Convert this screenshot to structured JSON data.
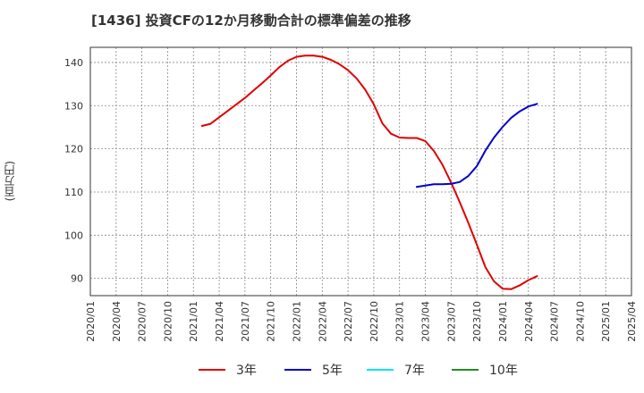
{
  "chart_data": {
    "type": "line",
    "title": "[1436]  投資CFの12か月移動合計の標準偏差の推移",
    "ylabel": "(百万円)",
    "xlabel": "",
    "ylim": [
      86,
      143.5
    ],
    "yticks": [
      90,
      100,
      110,
      120,
      130,
      140
    ],
    "x_ticks": [
      "2020/01",
      "2020/04",
      "2020/07",
      "2020/10",
      "2021/01",
      "2021/04",
      "2021/07",
      "2021/10",
      "2022/01",
      "2022/04",
      "2022/07",
      "2022/10",
      "2023/01",
      "2023/04",
      "2023/07",
      "2023/10",
      "2024/01",
      "2024/04",
      "2024/07",
      "2024/10",
      "2025/01",
      "2025/04"
    ],
    "grid": true,
    "legend_position": "bottom",
    "series": [
      {
        "name": "3年",
        "color": "#e00000",
        "points": [
          [
            "2021/02",
            125.3
          ],
          [
            "2021/03",
            125.8
          ],
          [
            "2021/04",
            127.3
          ],
          [
            "2021/05",
            128.8
          ],
          [
            "2021/06",
            130.3
          ],
          [
            "2021/07",
            131.8
          ],
          [
            "2021/08",
            133.5
          ],
          [
            "2021/09",
            135.2
          ],
          [
            "2021/10",
            137.0
          ],
          [
            "2021/11",
            138.9
          ],
          [
            "2021/12",
            140.4
          ],
          [
            "2022/01",
            141.3
          ],
          [
            "2022/02",
            141.6
          ],
          [
            "2022/03",
            141.6
          ],
          [
            "2022/04",
            141.3
          ],
          [
            "2022/05",
            140.6
          ],
          [
            "2022/06",
            139.6
          ],
          [
            "2022/07",
            138.2
          ],
          [
            "2022/08",
            136.3
          ],
          [
            "2022/09",
            133.7
          ],
          [
            "2022/10",
            130.3
          ],
          [
            "2022/11",
            125.9
          ],
          [
            "2022/12",
            123.5
          ],
          [
            "2023/01",
            122.6
          ],
          [
            "2023/02",
            122.5
          ],
          [
            "2023/03",
            122.5
          ],
          [
            "2023/04",
            121.8
          ],
          [
            "2023/05",
            119.5
          ],
          [
            "2023/06",
            116.3
          ],
          [
            "2023/07",
            112.2
          ],
          [
            "2023/08",
            107.7
          ],
          [
            "2023/09",
            102.9
          ],
          [
            "2023/10",
            97.8
          ],
          [
            "2023/11",
            92.6
          ],
          [
            "2023/12",
            89.3
          ],
          [
            "2024/01",
            87.6
          ],
          [
            "2024/02",
            87.5
          ],
          [
            "2024/03",
            88.4
          ],
          [
            "2024/04",
            89.6
          ],
          [
            "2024/05",
            90.5
          ]
        ]
      },
      {
        "name": "5年",
        "color": "#0000cc",
        "points": [
          [
            "2023/03",
            111.2
          ],
          [
            "2023/04",
            111.5
          ],
          [
            "2023/05",
            111.8
          ],
          [
            "2023/06",
            111.8
          ],
          [
            "2023/07",
            111.9
          ],
          [
            "2023/08",
            112.3
          ],
          [
            "2023/09",
            113.7
          ],
          [
            "2023/10",
            116.0
          ],
          [
            "2023/11",
            119.6
          ],
          [
            "2023/12",
            122.6
          ],
          [
            "2024/01",
            125.1
          ],
          [
            "2024/02",
            127.2
          ],
          [
            "2024/03",
            128.7
          ],
          [
            "2024/04",
            129.8
          ],
          [
            "2024/05",
            130.4
          ]
        ]
      },
      {
        "name": "7年",
        "color": "#00e5ee",
        "points": []
      },
      {
        "name": "10年",
        "color": "#228b22",
        "points": []
      }
    ]
  }
}
